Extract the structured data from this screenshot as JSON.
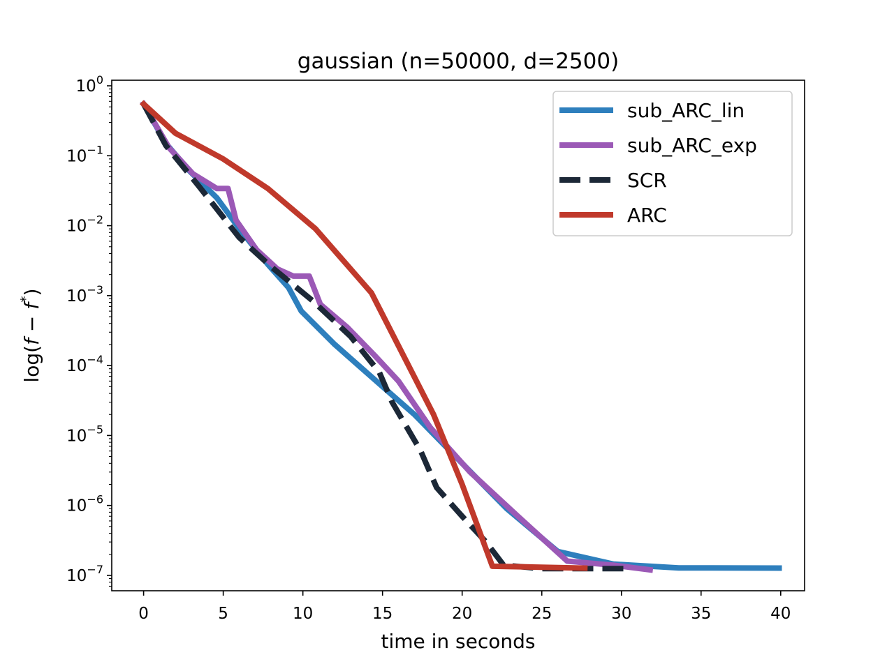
{
  "chart_data": {
    "type": "line",
    "title": "gaussian (n=50000, d=2500)",
    "xlabel": "time in seconds",
    "ylabel": {
      "prefix": "log(",
      "var_f": "f",
      "minus": " − ",
      "var_fstar": "f",
      "star": "*",
      "suffix": ")"
    },
    "xlim": [
      -2,
      41.5
    ],
    "ylim_log10": [
      -7.22,
      0.08
    ],
    "yscale": "log",
    "x_ticks": [
      0,
      5,
      10,
      15,
      20,
      25,
      30,
      35,
      40
    ],
    "x_tick_labels": [
      "0",
      "5",
      "10",
      "15",
      "20",
      "25",
      "30",
      "35",
      "40"
    ],
    "y_ticks": [
      {
        "exp": 0,
        "base": "10",
        "sup": "0"
      },
      {
        "exp": -1,
        "base": "10",
        "sup": "−1"
      },
      {
        "exp": -2,
        "base": "10",
        "sup": "−2"
      },
      {
        "exp": -3,
        "base": "10",
        "sup": "−3"
      },
      {
        "exp": -4,
        "base": "10",
        "sup": "−4"
      },
      {
        "exp": -5,
        "base": "10",
        "sup": "−5"
      },
      {
        "exp": -6,
        "base": "10",
        "sup": "−6"
      },
      {
        "exp": -7,
        "base": "10",
        "sup": "−7"
      }
    ],
    "legend_position": "top-right",
    "series": [
      {
        "name": "sub_ARC_lin",
        "color": "#2e7fbd",
        "dash": "solid",
        "points": [
          [
            0,
            0.55
          ],
          [
            1.4,
            0.15
          ],
          [
            2.9,
            0.06
          ],
          [
            4.6,
            0.025
          ],
          [
            6.1,
            0.0085
          ],
          [
            7.8,
            0.0028
          ],
          [
            9.1,
            0.0013
          ],
          [
            9.9,
            0.0006
          ],
          [
            12.0,
            0.0002
          ],
          [
            15.0,
            5e-05
          ],
          [
            17.0,
            2e-05
          ],
          [
            20.0,
            4e-06
          ],
          [
            22.8,
            9e-07
          ],
          [
            26.0,
            2.2e-07
          ],
          [
            29.5,
            1.45e-07
          ],
          [
            33.6,
            1.28e-07
          ],
          [
            39.9,
            1.27e-07
          ]
        ]
      },
      {
        "name": "sub_ARC_exp",
        "color": "#9b59b6",
        "dash": "solid",
        "points": [
          [
            0,
            0.55
          ],
          [
            1.6,
            0.13
          ],
          [
            3.1,
            0.055
          ],
          [
            4.6,
            0.034
          ],
          [
            5.3,
            0.034
          ],
          [
            5.8,
            0.012
          ],
          [
            7.1,
            0.0045
          ],
          [
            8.4,
            0.0024
          ],
          [
            9.4,
            0.0019
          ],
          [
            10.4,
            0.0019
          ],
          [
            11.1,
            0.00075
          ],
          [
            12.8,
            0.00035
          ],
          [
            14.5,
            0.00014
          ],
          [
            16.0,
            6e-05
          ],
          [
            18.0,
            1.3e-05
          ],
          [
            20.5,
            3e-06
          ],
          [
            23.5,
            7e-07
          ],
          [
            26.6,
            1.6e-07
          ],
          [
            29.5,
            1.4e-07
          ],
          [
            31.8,
            1.2e-07
          ]
        ]
      },
      {
        "name": "SCR",
        "color": "#1c2837",
        "dash": "dashed",
        "points": [
          [
            0,
            0.55
          ],
          [
            1.4,
            0.14
          ],
          [
            3.5,
            0.036
          ],
          [
            6.0,
            0.0068
          ],
          [
            8.0,
            0.0026
          ],
          [
            10.6,
            0.00085
          ],
          [
            13.0,
            0.00026
          ],
          [
            14.8,
            8e-05
          ],
          [
            15.6,
            3e-05
          ],
          [
            17.4,
            6e-06
          ],
          [
            18.4,
            1.8e-06
          ],
          [
            20.0,
            7e-07
          ],
          [
            21.5,
            3e-07
          ],
          [
            22.6,
            1.4e-07
          ],
          [
            25.0,
            1.25e-07
          ],
          [
            28.0,
            1.25e-07
          ],
          [
            30.5,
            1.25e-07
          ]
        ]
      },
      {
        "name": "ARC",
        "color": "#c0392b",
        "dash": "solid",
        "points": [
          [
            0,
            0.55
          ],
          [
            2.0,
            0.21
          ],
          [
            5.0,
            0.09
          ],
          [
            7.8,
            0.034
          ],
          [
            10.8,
            0.009
          ],
          [
            14.3,
            0.0011
          ],
          [
            18.2,
            2e-05
          ],
          [
            20.0,
            2e-06
          ],
          [
            21.9,
            1.35e-07
          ],
          [
            24.0,
            1.32e-07
          ],
          [
            27.7,
            1.27e-07
          ]
        ]
      }
    ]
  }
}
